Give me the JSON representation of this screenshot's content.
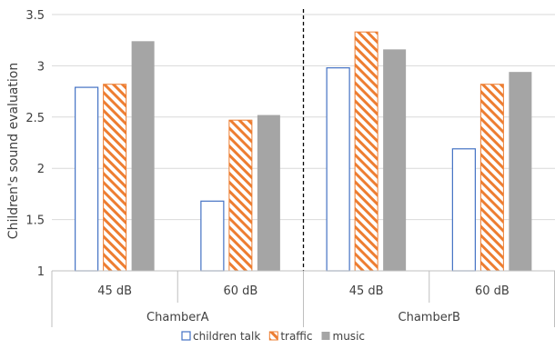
{
  "chart_data": {
    "type": "bar",
    "ylabel": "Children's sound evaluation",
    "ylim": [
      1,
      3.5
    ],
    "yticks": [
      "1",
      "1.5",
      "2",
      "2.5",
      "3",
      "3.5"
    ],
    "grid": true,
    "legend_position": "bottom",
    "groups": [
      {
        "name": "ChamberA",
        "categories": [
          "45 dB",
          "60 dB"
        ]
      },
      {
        "name": "ChamberB",
        "categories": [
          "45 dB",
          "60 dB"
        ]
      }
    ],
    "categories": [
      "45 dB",
      "60 dB",
      "45 dB",
      "60 dB"
    ],
    "series": [
      {
        "name": "children talk",
        "values": [
          2.79,
          1.68,
          2.98,
          2.19
        ]
      },
      {
        "name": "traffic",
        "values": [
          2.82,
          2.47,
          3.33,
          2.82
        ]
      },
      {
        "name": "music",
        "values": [
          3.24,
          2.52,
          3.16,
          2.94
        ]
      }
    ],
    "colors": {
      "children_talk_border": "#4472c4",
      "traffic": "#ed7d31",
      "music": "#a5a5a5",
      "grid": "#d9d9d9",
      "divider": "#000000"
    }
  }
}
